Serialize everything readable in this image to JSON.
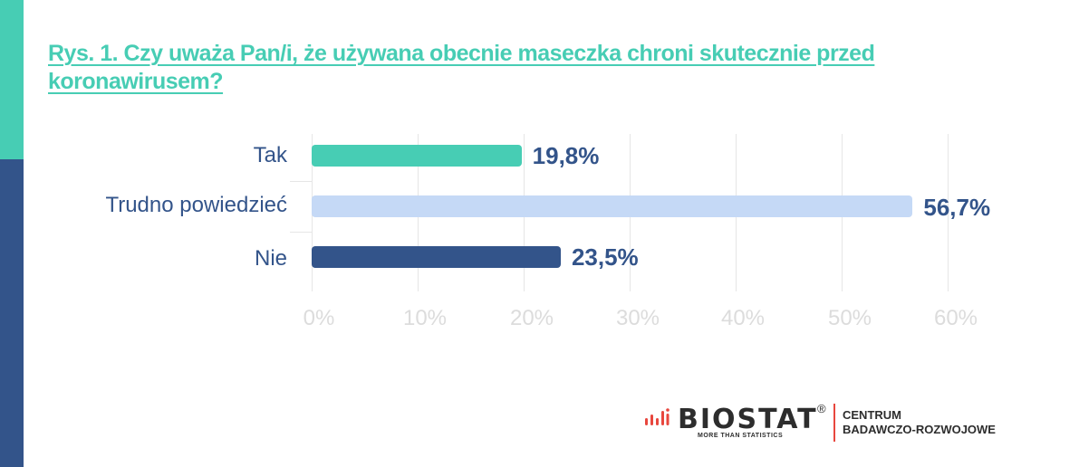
{
  "header": {
    "title": "Rys. 1. Czy uważa Pan/i, że używana obecnie maseczka chroni skutecznie przed koronawirusem?"
  },
  "colors": {
    "accent_teal": "#47cdb4",
    "navy": "#33548a",
    "light_blue": "#c5d9f6",
    "grid": "#e6e6e6",
    "tick_text": "#dcdcdc",
    "logo_red": "#e8473e"
  },
  "chart_data": {
    "type": "bar",
    "orientation": "horizontal",
    "title": "Rys. 1. Czy uważa Pan/i, że używana obecnie maseczka chroni skutecznie przed koronawirusem?",
    "categories": [
      "Tak",
      "Trudno powiedzieć",
      "Nie"
    ],
    "values": [
      19.8,
      56.7,
      23.5
    ],
    "value_labels": [
      "19,8%",
      "56,7%",
      "23,5%"
    ],
    "bar_colors": [
      "#47cdb4",
      "#c5d9f6",
      "#33548a"
    ],
    "xlabel": "",
    "ylabel": "",
    "xlim": [
      0,
      60
    ],
    "x_ticks": [
      "0%",
      "10%",
      "20%",
      "30%",
      "40%",
      "50%",
      "60%"
    ],
    "grid": true,
    "legend": null
  },
  "logo": {
    "brand": "BIOSTAT",
    "registered": "®",
    "tagline": "MORE THAN STATISTICS",
    "unit_line1": "CENTRUM",
    "unit_line2": "BADAWCZO-ROZWOJOWE"
  }
}
